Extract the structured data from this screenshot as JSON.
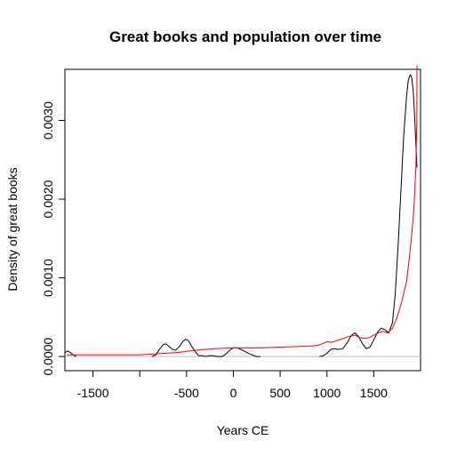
{
  "chart_data": {
    "type": "line",
    "title": "Great books and population over time",
    "xlabel": "Years CE",
    "ylabel": "Density of great books",
    "xlim": [
      -1800,
      2000
    ],
    "ylim": [
      -0.00018,
      0.00365
    ],
    "x_ticks": [
      -1500,
      -1000,
      -500,
      0,
      500,
      1000,
      1500
    ],
    "x_tick_labels": [
      "-1500",
      "",
      "-500",
      "0",
      "500",
      "1000",
      "1500"
    ],
    "y_ticks": [
      0.0,
      0.001,
      0.002,
      0.003
    ],
    "y_tick_labels": [
      "0.0000",
      "0.0010",
      "0.0020",
      "0.0030"
    ],
    "baseline": 0,
    "colors": {
      "great_books": "#000000",
      "population": "#ff0000",
      "baseline": "#bebebe"
    },
    "series": [
      {
        "color": "#000000",
        "segments": [
          {
            "x": [
              -1800,
              -1770,
              -1740,
              -1710,
              -1680
            ],
            "y": [
              5e-05,
              7e-05,
              5e-05,
              2e-05,
              0.0
            ]
          },
          {
            "x": [
              -870,
              -830,
              -790,
              -750,
              -720,
              -680,
              -650,
              -620,
              -580,
              -540,
              -510,
              -480,
              -440,
              -400,
              -370,
              -330,
              -290
            ],
            "y": [
              0.0,
              2e-05,
              9e-05,
              0.00015,
              0.00016,
              0.00012,
              9e-05,
              8e-05,
              0.00012,
              0.00019,
              0.00022,
              0.0002,
              0.00012,
              5e-05,
              1e-05,
              1e-05,
              0.0
            ]
          },
          {
            "x": [
              -290,
              -260,
              -220,
              -170,
              -120,
              -80,
              -40,
              0,
              40,
              100,
              160,
              200,
              250,
              290
            ],
            "y": [
              0.0,
              1e-05,
              1e-05,
              0.0,
              0.0,
              3e-05,
              8e-05,
              0.00011,
              0.00011,
              8e-05,
              4e-05,
              2e-05,
              0.0,
              0.0
            ]
          },
          {
            "x": [
              920,
              960,
              1000,
              1040,
              1080,
              1120,
              1170,
              1220,
              1260,
              1300,
              1340,
              1380,
              1420,
              1460,
              1500,
              1540,
              1580,
              1620,
              1660,
              1700,
              1730,
              1760,
              1790,
              1820,
              1850,
              1870,
              1890,
              1905,
              1920,
              1935,
              1950,
              1962
            ],
            "y": [
              0.0,
              1e-05,
              4e-05,
              9e-05,
              0.0001,
              9e-05,
              0.0001,
              0.00018,
              0.00027,
              0.0003,
              0.00025,
              0.00016,
              0.0001,
              0.00012,
              0.00021,
              0.00031,
              0.00036,
              0.00034,
              0.0003,
              0.00043,
              0.0008,
              0.0014,
              0.0021,
              0.0028,
              0.0033,
              0.00352,
              0.00358,
              0.00355,
              0.0034,
              0.0031,
              0.0027,
              0.0024
            ]
          }
        ]
      },
      {
        "color": "#ff0000",
        "segments": [
          {
            "x": [
              -1780,
              -1500,
              -1000,
              -600,
              -400,
              -200,
              0,
              300,
              500,
              800,
              900,
              950,
              1000,
              1050,
              1100,
              1150,
              1200,
              1250,
              1300,
              1350,
              1400,
              1450,
              1500,
              1550,
              1600,
              1650,
              1700,
              1750,
              1800,
              1850,
              1880,
              1910,
              1930,
              1950,
              1960,
              1962
            ],
            "y": [
              2e-05,
              2e-05,
              2e-05,
              5e-05,
              8e-05,
              0.0001,
              0.00011,
              0.00011,
              0.00012,
              0.00013,
              0.00014,
              0.00016,
              0.00019,
              0.00018,
              0.0002,
              0.00022,
              0.00024,
              0.00026,
              0.00027,
              0.00024,
              0.00023,
              0.00024,
              0.00027,
              0.0003,
              0.00032,
              0.0003,
              0.00036,
              0.0005,
              0.0007,
              0.00095,
              0.00125,
              0.0016,
              0.0019,
              0.0024,
              0.003,
              0.0037
            ]
          }
        ]
      }
    ]
  }
}
